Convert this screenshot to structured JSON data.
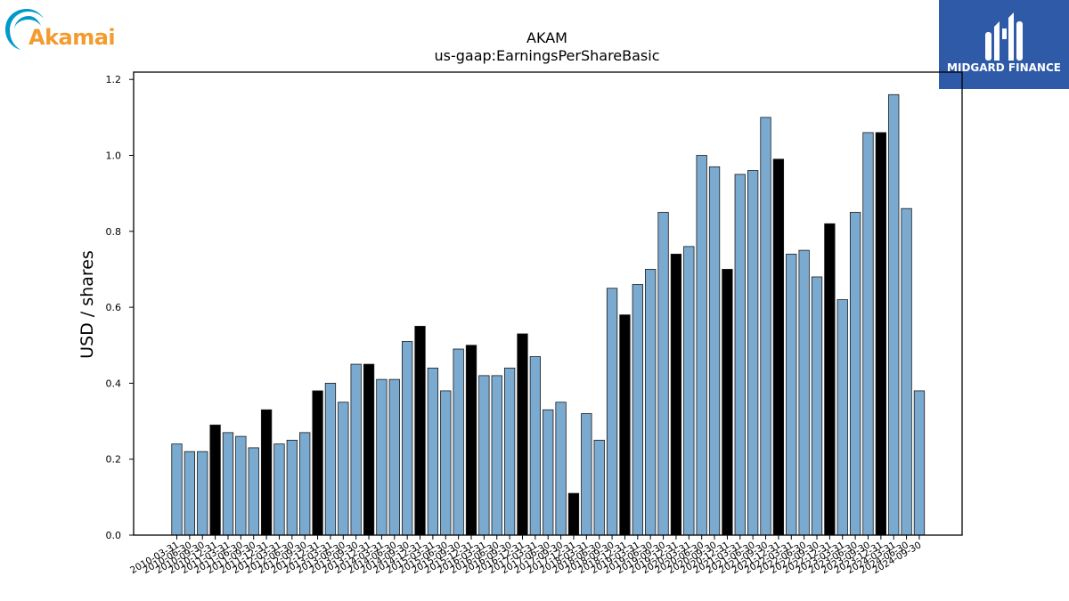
{
  "logos": {
    "left": {
      "text": "Akamai",
      "color": "#f49b2f",
      "swoosh_color": "#0099cc"
    },
    "right": {
      "text": "MIDGARD FINANCE",
      "background": "#2f5aa8"
    }
  },
  "chart_data": {
    "type": "bar",
    "title": "AKAM",
    "subtitle": "us-gaap:EarningsPerShareBasic",
    "xlabel": "",
    "ylabel": "USD / shares",
    "ylim": [
      0,
      1.22
    ],
    "yticks": [
      0.0,
      0.2,
      0.4,
      0.6,
      0.8,
      1.0,
      1.2
    ],
    "ytick_labels": [
      "0.0",
      "0.2",
      "0.4",
      "0.6",
      "0.8",
      "1.0",
      "1.2"
    ],
    "grid": false,
    "colors": {
      "default": "#7aaad0",
      "highlight": "#000000",
      "edge": "#1a1a1a"
    },
    "categories": [
      "2010-03-31",
      "2010-06-30",
      "2010-09-30",
      "2010-12-31",
      "2011-03-31",
      "2011-06-30",
      "2011-09-30",
      "2011-12-31",
      "2012-03-31",
      "2012-06-30",
      "2012-09-30",
      "2012-12-31",
      "2013-03-31",
      "2013-06-30",
      "2013-09-30",
      "2013-12-31",
      "2014-03-31",
      "2014-06-30",
      "2014-09-30",
      "2014-12-31",
      "2015-03-31",
      "2015-06-30",
      "2015-09-30",
      "2015-12-31",
      "2016-03-31",
      "2016-06-30",
      "2016-09-30",
      "2016-12-31",
      "2017-03-31",
      "2017-06-30",
      "2017-09-30",
      "2017-12-31",
      "2018-03-31",
      "2018-06-30",
      "2018-09-30",
      "2018-12-31",
      "2019-03-31",
      "2019-06-30",
      "2019-09-30",
      "2019-12-31",
      "2020-03-31",
      "2020-06-30",
      "2020-09-30",
      "2020-12-31",
      "2021-03-31",
      "2021-06-30",
      "2021-09-30",
      "2021-12-31",
      "2022-03-31",
      "2022-06-30",
      "2022-09-30",
      "2022-12-31",
      "2023-03-31",
      "2023-06-30",
      "2023-09-30",
      "2023-12-31",
      "2024-03-31",
      "2024-06-30",
      "2024-09-30"
    ],
    "values": [
      0.24,
      0.22,
      0.22,
      0.29,
      0.27,
      0.26,
      0.23,
      0.33,
      0.24,
      0.25,
      0.27,
      0.38,
      0.4,
      0.35,
      0.45,
      0.45,
      0.41,
      0.41,
      0.51,
      0.55,
      0.44,
      0.38,
      0.49,
      0.5,
      0.42,
      0.42,
      0.44,
      0.53,
      0.47,
      0.33,
      0.35,
      0.11,
      0.32,
      0.25,
      0.65,
      0.58,
      0.66,
      0.7,
      0.85,
      0.74,
      0.76,
      1.0,
      0.97,
      0.7,
      0.95,
      0.96,
      1.1,
      0.99,
      0.74,
      0.75,
      0.68,
      0.82,
      0.62,
      0.85,
      1.06,
      1.06,
      1.16,
      0.86,
      0.38
    ],
    "highlight": [
      false,
      false,
      false,
      true,
      false,
      false,
      false,
      true,
      false,
      false,
      false,
      true,
      false,
      false,
      false,
      true,
      false,
      false,
      false,
      true,
      false,
      false,
      false,
      true,
      false,
      false,
      false,
      true,
      false,
      false,
      false,
      true,
      false,
      false,
      false,
      true,
      false,
      false,
      false,
      true,
      false,
      false,
      false,
      true,
      false,
      false,
      false,
      true,
      false,
      false,
      false,
      true,
      false,
      false,
      false,
      true,
      false,
      false,
      false
    ]
  }
}
